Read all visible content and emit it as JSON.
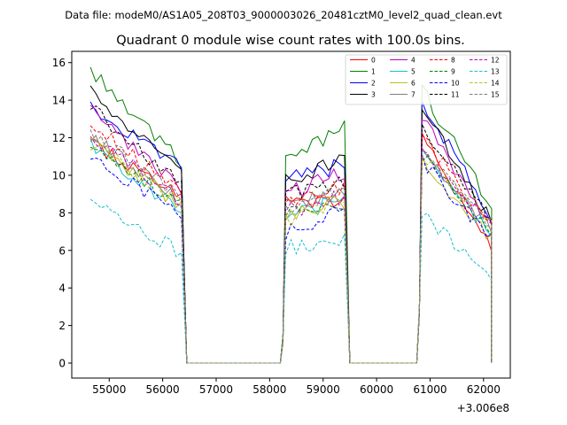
{
  "figure": {
    "suptitle": "Data file: modeM0/AS1A05_208T03_9000003026_20481cztM0_level2_quad_clean.evt"
  },
  "chart_data": {
    "type": "line",
    "title": "Quadrant 0 module wise count rates with 100.0s bins.",
    "xlabel": "",
    "ylabel": "",
    "x_offset_label": "+3.006e8",
    "x_offset": 300600000,
    "xlim": [
      54300,
      62500
    ],
    "ylim": [
      -0.8,
      16.6
    ],
    "xticks": [
      55000,
      56000,
      57000,
      58000,
      59000,
      60000,
      61000,
      62000
    ],
    "xtick_labels": [
      "55000",
      "56000",
      "57000",
      "58000",
      "59000",
      "60000",
      "61000",
      "62000"
    ],
    "yticks": [
      0,
      2,
      4,
      6,
      8,
      10,
      12,
      14,
      16
    ],
    "ytick_labels": [
      "0",
      "2",
      "4",
      "6",
      "8",
      "10",
      "12",
      "14",
      "16"
    ],
    "legend_position": "top-right",
    "legend_columns": 4,
    "segments": [
      {
        "start": 54650,
        "end": 56350,
        "drop_to": 56450,
        "bins": 18
      },
      {
        "start": 58300,
        "end": 59400,
        "drop_to": 59500,
        "bins": 12
      },
      {
        "start": 60850,
        "end": 62150,
        "drop_to": 62150,
        "bins": 14
      }
    ],
    "gap_ramps": [
      {
        "x": [
          56450,
          58200,
          58250,
          58300
        ],
        "y": [
          0,
          0,
          1.5,
          0
        ]
      },
      {
        "x": [
          59500,
          60750,
          60800,
          60850
        ],
        "y": [
          0,
          0,
          3.5,
          0
        ]
      }
    ],
    "series": [
      {
        "name": "0",
        "color": "#ff0000",
        "dashed": false,
        "level": [
          11.8,
          8.6,
          11.9
        ],
        "end": [
          8.9,
          8.8,
          6.3
        ]
      },
      {
        "name": "1",
        "color": "#008000",
        "dashed": false,
        "level": [
          15.6,
          11.0,
          14.6
        ],
        "end": [
          10.8,
          12.5,
          8.2
        ]
      },
      {
        "name": "2",
        "color": "#0000ff",
        "dashed": false,
        "level": [
          13.7,
          9.9,
          13.9
        ],
        "end": [
          10.4,
          10.5,
          7.8
        ]
      },
      {
        "name": "3",
        "color": "#000000",
        "dashed": false,
        "level": [
          14.5,
          9.6,
          13.6
        ],
        "end": [
          10.1,
          10.8,
          7.5
        ]
      },
      {
        "name": "4",
        "color": "#bf00bf",
        "dashed": false,
        "level": [
          13.4,
          9.0,
          13.2
        ],
        "end": [
          9.3,
          10.1,
          7.2
        ]
      },
      {
        "name": "5",
        "color": "#17becf",
        "dashed": false,
        "level": [
          11.6,
          7.7,
          11.0
        ],
        "end": [
          8.0,
          8.8,
          6.8
        ]
      },
      {
        "name": "6",
        "color": "#bcbd22",
        "dashed": false,
        "level": [
          11.7,
          7.9,
          10.9
        ],
        "end": [
          8.3,
          8.6,
          6.5
        ]
      },
      {
        "name": "7",
        "color": "#7f7f7f",
        "dashed": false,
        "level": [
          12.1,
          8.4,
          11.4
        ],
        "end": [
          8.6,
          9.0,
          7.0
        ]
      },
      {
        "name": "8",
        "color": "#ff0000",
        "dashed": true,
        "level": [
          12.9,
          8.5,
          12.2
        ],
        "end": [
          9.0,
          9.4,
          7.1
        ]
      },
      {
        "name": "9",
        "color": "#008000",
        "dashed": true,
        "level": [
          11.7,
          8.0,
          11.0
        ],
        "end": [
          8.3,
          8.4,
          6.9
        ]
      },
      {
        "name": "10",
        "color": "#0000ff",
        "dashed": true,
        "level": [
          11.0,
          7.0,
          10.7
        ],
        "end": [
          7.8,
          8.1,
          6.6
        ]
      },
      {
        "name": "11",
        "color": "#000000",
        "dashed": true,
        "level": [
          13.6,
          8.9,
          12.5
        ],
        "end": [
          9.5,
          9.7,
          7.8
        ]
      },
      {
        "name": "12",
        "color": "#bf00bf",
        "dashed": true,
        "level": [
          12.1,
          8.1,
          11.3
        ],
        "end": [
          8.6,
          8.9,
          7.3
        ]
      },
      {
        "name": "13",
        "color": "#17becf",
        "dashed": true,
        "level": [
          8.7,
          6.1,
          7.9
        ],
        "end": [
          5.9,
          6.5,
          4.6
        ]
      },
      {
        "name": "14",
        "color": "#bcbd22",
        "dashed": true,
        "level": [
          11.9,
          7.6,
          11.1
        ],
        "end": [
          8.4,
          8.7,
          7.5
        ]
      },
      {
        "name": "15",
        "color": "#7f7f7f",
        "dashed": true,
        "level": [
          12.3,
          8.3,
          11.6
        ],
        "end": [
          8.8,
          9.1,
          7.4
        ]
      }
    ]
  }
}
